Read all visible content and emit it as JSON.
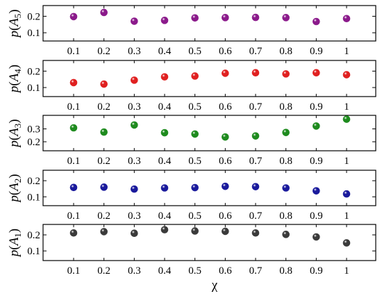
{
  "chart_data": {
    "type": "scatter",
    "xlabel": "χ",
    "x": [
      0.1,
      0.2,
      0.3,
      0.4,
      0.5,
      0.6,
      0.7,
      0.8,
      0.9,
      1
    ],
    "x_tick_labels": [
      "0.1",
      "0.2",
      "0.3",
      "0.4",
      "0.5",
      "0.6",
      "0.7",
      "0.8",
      "0.9",
      "1"
    ],
    "grid": false,
    "panels": [
      {
        "ylabel_prefix": "p(A",
        "ylabel_sub": "5",
        "ylabel_suffix": ")",
        "color": "#8b1a8b",
        "ylim": [
          0.05,
          0.265
        ],
        "yticks": [
          0.1,
          0.2
        ],
        "ytick_labels": [
          "0.1",
          "0.2"
        ],
        "values": [
          0.198,
          0.223,
          0.17,
          0.175,
          0.19,
          0.192,
          0.193,
          0.192,
          0.168,
          0.186
        ]
      },
      {
        "ylabel_prefix": "p(A",
        "ylabel_sub": "4",
        "ylabel_suffix": ")",
        "color": "#e02020",
        "ylim": [
          0.045,
          0.265
        ],
        "yticks": [
          0.1,
          0.2
        ],
        "ytick_labels": [
          "0.1",
          "0.2"
        ],
        "values": [
          0.13,
          0.121,
          0.145,
          0.165,
          0.17,
          0.187,
          0.19,
          0.183,
          0.19,
          0.178
        ]
      },
      {
        "ylabel_prefix": "p(A",
        "ylabel_sub": "3",
        "ylabel_suffix": ")",
        "color": "#1e8b1e",
        "ylim": [
          0.13,
          0.405
        ],
        "yticks": [
          0.2,
          0.3
        ],
        "ytick_labels": [
          "0.2",
          "0.3"
        ],
        "values": [
          0.308,
          0.275,
          0.33,
          0.27,
          0.26,
          0.237,
          0.245,
          0.272,
          0.322,
          0.375
        ]
      },
      {
        "ylabel_prefix": "p(A",
        "ylabel_sub": "2",
        "ylabel_suffix": ")",
        "color": "#1a1a9c",
        "ylim": [
          0.045,
          0.265
        ],
        "yticks": [
          0.1,
          0.2
        ],
        "ytick_labels": [
          "0.1",
          "0.2"
        ],
        "values": [
          0.158,
          0.16,
          0.148,
          0.155,
          0.157,
          0.165,
          0.163,
          0.155,
          0.137,
          0.118
        ]
      },
      {
        "ylabel_prefix": "p(A",
        "ylabel_sub": "1",
        "ylabel_suffix": ")",
        "color": "#3a3a3a",
        "ylim": [
          0.04,
          0.265
        ],
        "yticks": [
          0.1,
          0.2
        ],
        "ytick_labels": [
          "0.1",
          "0.2"
        ],
        "values": [
          0.212,
          0.22,
          0.21,
          0.232,
          0.224,
          0.222,
          0.212,
          0.203,
          0.187,
          0.15
        ]
      }
    ]
  }
}
